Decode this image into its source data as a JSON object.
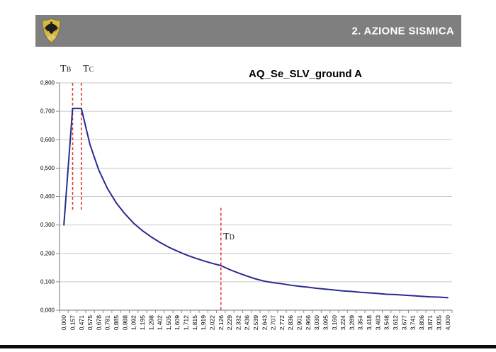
{
  "header": {
    "title": "2. AZIONE SISMICA",
    "bar_color": "#7F7F7F",
    "text_color": "#FFFFFF",
    "logo_icon": "eagle-shield-crest",
    "logo_colors": {
      "shield": "#D8B93F",
      "eagle": "#1c1c1c",
      "border": "#6b6b52"
    }
  },
  "chart_data": {
    "type": "line",
    "title": "AQ_Se_SLV_ground A",
    "xlabel": "",
    "ylabel": "",
    "legend": "none",
    "grid": "horizontal",
    "ylim": [
      0,
      0.8
    ],
    "series_color": "#2B2B8F",
    "grid_color": "#C9C9C9",
    "axis_color": "#8C8C8C",
    "label_color": "#000000",
    "marker_color": "#E0392F",
    "x_categories": [
      "0,000",
      "0,157",
      "0,471",
      "0,575",
      "0,678",
      "0,781",
      "0,885",
      "0,988",
      "1,092",
      "1,195",
      "1,298",
      "1,402",
      "1,505",
      "1,609",
      "1,712",
      "1,815",
      "1,919",
      "2,022",
      "2,126",
      "2,229",
      "2,332",
      "2,436",
      "2,539",
      "2,643",
      "2,707",
      "2,772",
      "2,836",
      "2,901",
      "2,966",
      "3,030",
      "3,095",
      "3,160",
      "3,224",
      "3,289",
      "3,354",
      "3,418",
      "3,483",
      "3,548",
      "3,612",
      "3,677",
      "3,741",
      "3,806",
      "3,871",
      "3,935",
      "4,000"
    ],
    "values": [
      0.3,
      0.71,
      0.71,
      0.582,
      0.493,
      0.428,
      0.378,
      0.339,
      0.306,
      0.28,
      0.258,
      0.239,
      0.222,
      0.208,
      0.195,
      0.184,
      0.174,
      0.165,
      0.157,
      0.143,
      0.131,
      0.12,
      0.11,
      0.102,
      0.097,
      0.093,
      0.088,
      0.084,
      0.081,
      0.077,
      0.074,
      0.071,
      0.068,
      0.066,
      0.063,
      0.061,
      0.059,
      0.056,
      0.055,
      0.053,
      0.051,
      0.049,
      0.047,
      0.046,
      0.044
    ],
    "y_ticks": [
      {
        "label": "0,000",
        "value": 0.0
      },
      {
        "label": "0,100",
        "value": 0.1
      },
      {
        "label": "0,200",
        "value": 0.2
      },
      {
        "label": "0,300",
        "value": 0.3
      },
      {
        "label": "0,400",
        "value": 0.4
      },
      {
        "label": "0,500",
        "value": 0.5
      },
      {
        "label": "0,600",
        "value": 0.6
      },
      {
        "label": "0,700",
        "value": 0.7
      },
      {
        "label": "0,800",
        "value": 0.8
      }
    ],
    "markers": [
      {
        "name": "TB",
        "label": "T",
        "label_sub": "B",
        "category": "0,157",
        "category_index": 1,
        "line_from": 0.8,
        "line_to": 0.35
      },
      {
        "name": "TC",
        "label": "T",
        "label_sub": "C",
        "category": "0,471",
        "category_index": 2,
        "line_from": 0.8,
        "line_to": 0.35
      },
      {
        "name": "TD",
        "label": "T",
        "label_sub": "D",
        "category": "2,126",
        "category_index": 18,
        "line_from": 0.36,
        "line_to": 0.0
      }
    ]
  },
  "footer": {
    "rule_color": "#0B0B0B"
  }
}
